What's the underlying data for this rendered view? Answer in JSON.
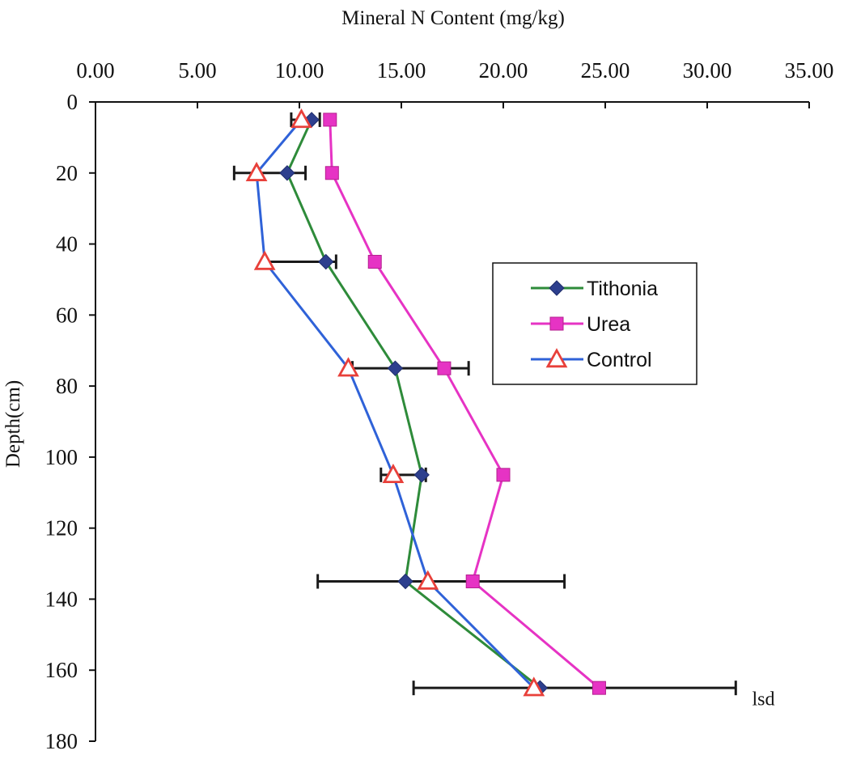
{
  "chart_data": {
    "type": "line",
    "orientation": "depth-profile",
    "title": "",
    "xlabel": "Mineral N Content (mg/kg)",
    "ylabel": "Depth(cm)",
    "x_axis_position": "top",
    "xlim": [
      0,
      35
    ],
    "ylim": [
      0,
      180
    ],
    "y_inverted": true,
    "x_tick_labels": [
      "0.00",
      "5.00",
      "10.00",
      "15.00",
      "20.00",
      "25.00",
      "30.00",
      "35.00"
    ],
    "x_ticks": [
      0,
      5,
      10,
      15,
      20,
      25,
      30,
      35
    ],
    "y_tick_labels": [
      "0",
      "20",
      "40",
      "60",
      "80",
      "100",
      "120",
      "140",
      "160",
      "180"
    ],
    "y_ticks": [
      0,
      20,
      40,
      60,
      80,
      100,
      120,
      140,
      160,
      180
    ],
    "grid": false,
    "legend_position": "right-middle",
    "series": [
      {
        "name": "Tithonia",
        "color": "#2e8b3a",
        "marker_color": "#2d3f8e",
        "marker": "diamond",
        "points": [
          {
            "x": 10.6,
            "y": 5
          },
          {
            "x": 9.4,
            "y": 20
          },
          {
            "x": 11.3,
            "y": 45
          },
          {
            "x": 14.7,
            "y": 75
          },
          {
            "x": 16.0,
            "y": 105
          },
          {
            "x": 15.2,
            "y": 135
          },
          {
            "x": 21.8,
            "y": 165
          }
        ]
      },
      {
        "name": "Urea",
        "color": "#e633c4",
        "marker_color": "#e633c4",
        "marker": "square",
        "points": [
          {
            "x": 11.5,
            "y": 5
          },
          {
            "x": 11.6,
            "y": 20
          },
          {
            "x": 13.7,
            "y": 45
          },
          {
            "x": 17.1,
            "y": 75
          },
          {
            "x": 20.0,
            "y": 105
          },
          {
            "x": 18.5,
            "y": 135
          },
          {
            "x": 24.7,
            "y": 165
          }
        ]
      },
      {
        "name": "Control",
        "color": "#2f62d8",
        "marker_color": "#e8403a",
        "marker": "triangle",
        "points": [
          {
            "x": 10.1,
            "y": 5
          },
          {
            "x": 7.9,
            "y": 20
          },
          {
            "x": 8.3,
            "y": 45
          },
          {
            "x": 12.4,
            "y": 75
          },
          {
            "x": 14.6,
            "y": 105
          },
          {
            "x": 16.3,
            "y": 135
          },
          {
            "x": 21.5,
            "y": 165
          }
        ]
      }
    ],
    "error_bars": [
      {
        "y": 5,
        "x_min": 9.6,
        "x_max": 11.0
      },
      {
        "y": 20,
        "x_min": 6.8,
        "x_max": 10.3
      },
      {
        "y": 45,
        "x_min": 8.3,
        "x_max": 11.8
      },
      {
        "y": 75,
        "x_min": 12.6,
        "x_max": 18.3
      },
      {
        "y": 105,
        "x_min": 14.0,
        "x_max": 16.2
      },
      {
        "y": 135,
        "x_min": 10.9,
        "x_max": 23.0
      },
      {
        "y": 165,
        "x_min": 15.6,
        "x_max": 31.4
      }
    ],
    "annotations": [
      {
        "text": "lsd",
        "x": 32.2,
        "y": 168
      }
    ]
  }
}
